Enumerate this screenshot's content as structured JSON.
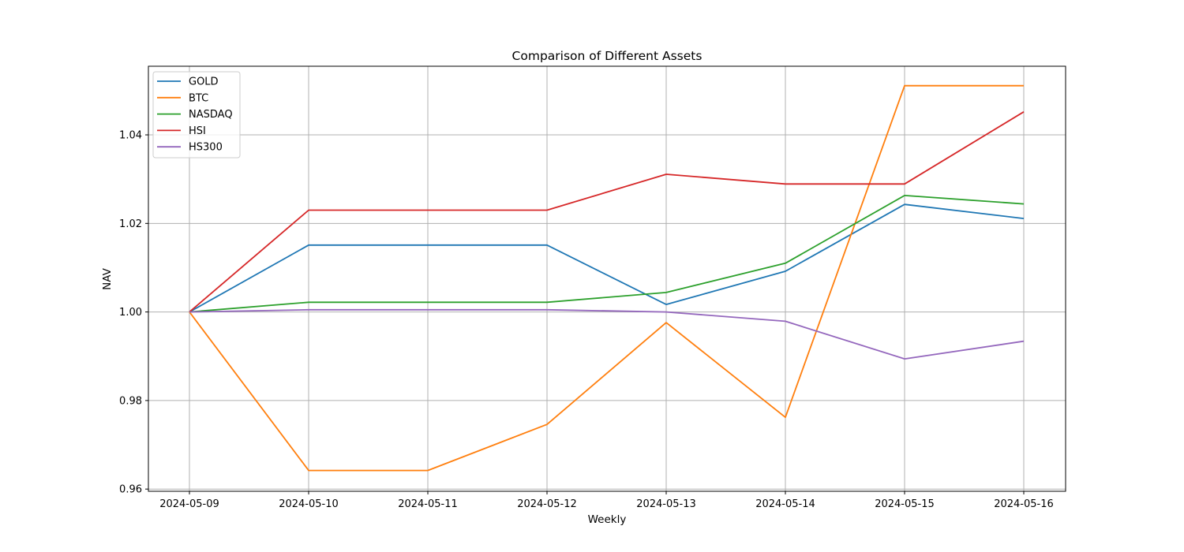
{
  "chart_data": {
    "type": "line",
    "title": "Comparison of Different Assets",
    "xlabel": "Weekly",
    "ylabel": "NAV",
    "categories": [
      "2024-05-09",
      "2024-05-10",
      "2024-05-11",
      "2024-05-12",
      "2024-05-13",
      "2024-05-14",
      "2024-05-15",
      "2024-05-16"
    ],
    "ylim": [
      0.9595,
      1.0555
    ],
    "yticks": [
      0.96,
      0.98,
      1.0,
      1.02,
      1.04
    ],
    "ytick_labels": [
      "0.96",
      "0.98",
      "1.00",
      "1.02",
      "1.04"
    ],
    "grid": true,
    "legend_position": "top-left",
    "series": [
      {
        "name": "GOLD",
        "color": "#1f77b4",
        "values": [
          1.0,
          1.0151,
          1.0151,
          1.0151,
          1.0017,
          1.0092,
          1.0243,
          1.0211
        ]
      },
      {
        "name": "BTC",
        "color": "#ff7f0e",
        "values": [
          1.0,
          0.9642,
          0.9642,
          0.9746,
          0.9976,
          0.9762,
          1.0511,
          1.0511
        ]
      },
      {
        "name": "NASDAQ",
        "color": "#2ca02c",
        "values": [
          1.0,
          1.0022,
          1.0022,
          1.0022,
          1.0044,
          1.011,
          1.0263,
          1.0244
        ]
      },
      {
        "name": "HSI",
        "color": "#d62728",
        "values": [
          1.0,
          1.023,
          1.023,
          1.023,
          1.0311,
          1.0289,
          1.0289,
          1.0452
        ]
      },
      {
        "name": "HS300",
        "color": "#9467bd",
        "values": [
          1.0,
          1.0005,
          1.0005,
          1.0005,
          1.0,
          0.9979,
          0.9894,
          0.9934
        ]
      }
    ]
  }
}
